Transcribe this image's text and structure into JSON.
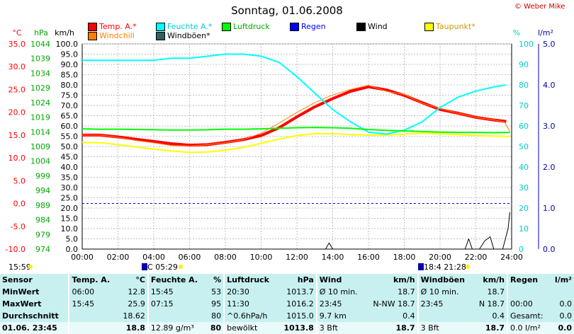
{
  "title": "Sonntag, 01.06.2008",
  "credit": "© Weber Mike",
  "legend": [
    {
      "label": "Temp. A.*",
      "color": "#ff0000",
      "text_color": "#ff0000"
    },
    {
      "label": "Feuchte A.*",
      "color": "#00ffff",
      "text_color": "#00cccc"
    },
    {
      "label": "Luftdruck",
      "color": "#00ff00",
      "text_color": "#00aa00"
    },
    {
      "label": "Regen",
      "color": "#0000ff",
      "text_color": "#0000ff"
    },
    {
      "label": "Wind",
      "color": "#000000",
      "text_color": "#000000"
    },
    {
      "label": "Taupunkt*",
      "color": "#ffff00",
      "text_color": "#cc9900"
    },
    {
      "label": "Windchill",
      "color": "#ff8000",
      "text_color": "#ff8000"
    },
    {
      "label": "Windböen*",
      "color": "#306060",
      "text_color": "#000000"
    }
  ],
  "chart_data": {
    "type": "line",
    "x_ticks": [
      "00:00",
      "02:00",
      "04:00",
      "06:00",
      "08:00",
      "10:00",
      "12:00",
      "14:00",
      "16:00",
      "18:00",
      "20:00",
      "22:00",
      "24:00"
    ],
    "axes": {
      "temp": {
        "unit": "°C",
        "min": -10,
        "max": 35,
        "ticks": [
          "35.0",
          "30.0",
          "25.0",
          "20.0",
          "15.0",
          "10.0",
          "5.0",
          "0.0",
          "-5.0",
          "-10.0"
        ]
      },
      "pressure": {
        "unit": "hPa",
        "min": 974,
        "max": 1044,
        "ticks": [
          "1044",
          "1039",
          "1034",
          "1029",
          "1024",
          "1019",
          "1014",
          "1009",
          "1004",
          "999",
          "994",
          "989",
          "984",
          "979",
          "974"
        ]
      },
      "wind": {
        "unit": "km/h",
        "min": 0,
        "max": 100,
        "ticks": [
          "100.0",
          "95.0",
          "90.0",
          "85.0",
          "80.0",
          "75.0",
          "70.0",
          "65.0",
          "60.0",
          "55.0",
          "50.0",
          "45.0",
          "40.0",
          "35.0",
          "30.0",
          "25.0",
          "20.0",
          "15.0",
          "10.0",
          "5.0",
          "0.0"
        ]
      },
      "humidity": {
        "unit": "%",
        "min": 0,
        "max": 100,
        "ticks": [
          "100",
          "90",
          "80",
          "70",
          "60",
          "50",
          "40",
          "30",
          "20",
          "10",
          "0"
        ]
      },
      "rain": {
        "unit": "l/m²",
        "min": 0,
        "max": 5,
        "ticks": [
          "5.0",
          "4.0",
          "3.0",
          "2.0",
          "1.0",
          "0.0"
        ]
      }
    },
    "series": [
      {
        "name": "Temp. A.*",
        "axis": "temp",
        "color": "#ff0000",
        "width": 4,
        "x": [
          0,
          1,
          2,
          3,
          4,
          5,
          6,
          7,
          8,
          9,
          10,
          11,
          12,
          13,
          14,
          15,
          16,
          17,
          18,
          19,
          20,
          21,
          22,
          23,
          23.7
        ],
        "y": [
          15.0,
          15.0,
          14.6,
          14.1,
          13.6,
          13.1,
          12.8,
          12.9,
          13.4,
          14.0,
          14.9,
          16.6,
          19.0,
          21.2,
          23.0,
          24.6,
          25.6,
          24.9,
          23.7,
          22.1,
          20.6,
          19.8,
          18.9,
          18.3,
          18.0
        ]
      },
      {
        "name": "Windchill",
        "axis": "temp",
        "color": "#ff8000",
        "width": 1,
        "x": [
          0,
          1,
          2,
          3,
          4,
          5,
          6,
          7,
          8,
          9,
          10,
          11,
          12,
          13,
          14,
          15,
          16,
          17,
          18,
          19,
          20,
          21,
          22,
          23,
          23.6,
          23.9
        ],
        "y": [
          15.0,
          15.0,
          14.5,
          13.8,
          13.3,
          12.7,
          12.6,
          12.9,
          13.3,
          14.0,
          15.4,
          17.6,
          20.0,
          22.1,
          23.8,
          25.0,
          25.9,
          24.6,
          23.9,
          22.0,
          20.8,
          19.8,
          18.9,
          18.3,
          17.9,
          15.8
        ]
      },
      {
        "name": "Taupunkt*",
        "axis": "temp",
        "color": "#ffff00",
        "width": 2,
        "x": [
          0,
          1,
          2,
          3,
          4,
          5,
          6,
          7,
          8,
          9,
          10,
          11,
          12,
          13,
          14,
          15,
          16,
          17,
          18,
          19,
          20,
          21,
          22,
          23,
          23.9
        ],
        "y": [
          13.4,
          13.3,
          12.9,
          12.4,
          11.9,
          11.5,
          11.2,
          11.3,
          11.7,
          12.3,
          13.2,
          14.1,
          14.9,
          15.3,
          15.3,
          15.1,
          15.0,
          15.0,
          15.2,
          15.4,
          15.3,
          15.1,
          14.9,
          14.8,
          14.7
        ]
      },
      {
        "name": "Feuchte A.*",
        "axis": "humidity",
        "color": "#00ffff",
        "width": 2,
        "x": [
          0,
          1,
          2,
          3,
          4,
          5,
          6,
          7,
          8,
          9,
          10,
          11,
          12,
          13,
          14,
          15,
          16,
          17,
          18,
          19,
          20,
          21,
          22,
          23,
          23.7
        ],
        "y": [
          92,
          92,
          92,
          92,
          92,
          93,
          93,
          94,
          95,
          95,
          94,
          91,
          84,
          76,
          68,
          62,
          57,
          56,
          58,
          62,
          69,
          74,
          77,
          79,
          80
        ]
      },
      {
        "name": "Luftdruck",
        "axis": "pressure",
        "color": "#00ff00",
        "width": 2,
        "x": [
          0,
          1,
          2,
          3,
          4,
          5,
          6,
          7,
          8,
          9,
          10,
          11,
          12,
          13,
          14,
          15,
          16,
          17,
          18,
          19,
          20,
          21,
          22,
          23,
          23.9
        ],
        "y": [
          1015.0,
          1014.9,
          1014.9,
          1014.8,
          1014.7,
          1014.6,
          1014.6,
          1014.7,
          1014.9,
          1014.9,
          1015.0,
          1015.2,
          1015.4,
          1015.5,
          1015.4,
          1015.2,
          1014.8,
          1014.5,
          1014.3,
          1014.1,
          1013.9,
          1013.8,
          1013.8,
          1013.7,
          1013.8
        ]
      },
      {
        "name": "Wind",
        "axis": "wind",
        "color": "#000000",
        "width": 1,
        "x": [
          0,
          13.6,
          13.8,
          14.0,
          14.2,
          21.4,
          21.6,
          21.8,
          22.0,
          22.2,
          22.5,
          22.8,
          23.0,
          23.2,
          23.5,
          23.8,
          23.9
        ],
        "y": [
          0,
          0,
          3,
          0,
          0,
          0,
          5,
          0,
          0,
          0,
          4,
          6,
          0,
          0,
          0,
          10,
          18
        ]
      }
    ],
    "reference_line": {
      "axis": "temp",
      "value": 0,
      "color": "#0000ff",
      "style": "dashed"
    },
    "grid": true
  },
  "info": {
    "left_time": "15:59",
    "mid_time": "C 05:29",
    "right_time": "18:4 21:28"
  },
  "stats": {
    "headers": [
      "Sensor",
      "Temp. A.",
      "°C",
      "Feuchte A.",
      "%",
      "Luftdruck",
      "hPa",
      "Wind",
      "km/h",
      "Windböen",
      "km/h",
      "Regen",
      "l/m²"
    ],
    "rows": [
      {
        "label": "MinWert",
        "cells": [
          "06:00",
          "12.8",
          "15:45",
          "53",
          "20:30",
          "1013.7",
          "Ø 10 min.",
          "18.7",
          "Ø 10 min.",
          "18.7",
          "",
          ""
        ]
      },
      {
        "label": "MaxWert",
        "cells": [
          "15:45",
          "25.9",
          "07:15",
          "95",
          "11:30",
          "1016.2",
          "23:45",
          "N-NW 18.7",
          "23:45",
          "N 18.7",
          "00:00",
          "0.0"
        ]
      },
      {
        "label": "Durchschnitt",
        "cells": [
          "",
          "18.62",
          "",
          "80",
          "^0.6hPa/h",
          "1015.0",
          "9.7 km",
          "0.4",
          "",
          "0.4",
          "Gesamt:",
          "0.0"
        ]
      },
      {
        "label": "01.06. 23:45",
        "cells": [
          "",
          "18.8",
          "12.89 g/m³",
          "80",
          "bewölkt",
          "1013.8",
          "3 Bft",
          "18.7",
          "3 Bft",
          "18.7",
          "0.0 l/m²",
          "0.0"
        ]
      }
    ]
  }
}
